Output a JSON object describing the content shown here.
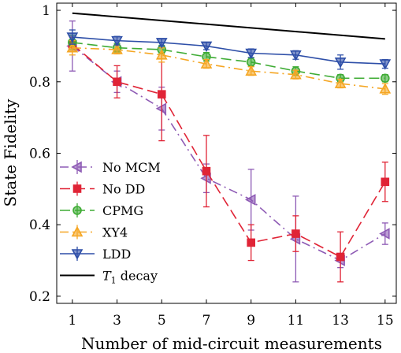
{
  "chart_data": {
    "type": "line",
    "xlabel": "Number of mid-circuit measurements",
    "ylabel": "State Fidelity",
    "xlim": [
      0.3,
      15.5
    ],
    "ylim": [
      0.18,
      1.02
    ],
    "xticks": [
      1,
      3,
      5,
      7,
      9,
      11,
      13,
      15
    ],
    "yticks": [
      0.2,
      0.4,
      0.6,
      0.8,
      1
    ],
    "ytick_labels": [
      "0.2",
      "0.4",
      "0.6",
      "0.8",
      "1"
    ],
    "grid": false,
    "legend_position": "lower-left",
    "x": [
      1,
      3,
      5,
      7,
      9,
      11,
      13,
      15
    ],
    "series": [
      {
        "name": "No MCM",
        "color": "#8e5bb5",
        "marker": "triangle-left",
        "dash": "dashdot",
        "values": [
          0.9,
          0.8,
          0.725,
          0.53,
          0.47,
          0.36,
          0.3,
          0.375
        ],
        "err": [
          0.07,
          0.03,
          0.06,
          0.04,
          0.085,
          0.12,
          0.02,
          0.03
        ]
      },
      {
        "name": "No DD",
        "color": "#e02436",
        "marker": "square",
        "dash": "dash",
        "values": [
          0.905,
          0.8,
          0.765,
          0.55,
          0.35,
          0.375,
          0.31,
          0.52
        ],
        "err": [
          0.02,
          0.045,
          0.13,
          0.1,
          0.05,
          0.05,
          0.07,
          0.055
        ]
      },
      {
        "name": "CPMG",
        "color": "#3fac35",
        "marker": "circle",
        "dash": "dash",
        "values": [
          0.91,
          0.895,
          0.89,
          0.87,
          0.855,
          0.83,
          0.81,
          0.81
        ],
        "err": [
          0.02,
          0.012,
          0.012,
          0.012,
          0.012,
          0.012,
          0.01,
          0.01
        ]
      },
      {
        "name": "XY4",
        "color": "#f5a623",
        "marker": "triangle-up",
        "dash": "dashdot",
        "values": [
          0.895,
          0.89,
          0.875,
          0.85,
          0.83,
          0.82,
          0.795,
          0.78
        ],
        "err": [
          0.02,
          0.012,
          0.02,
          0.012,
          0.012,
          0.012,
          0.012,
          0.015
        ]
      },
      {
        "name": "LDD",
        "color": "#2e4fa8",
        "marker": "triangle-down",
        "dash": "solid",
        "values": [
          0.925,
          0.915,
          0.91,
          0.9,
          0.88,
          0.875,
          0.855,
          0.85
        ],
        "err": [
          0.02,
          0.012,
          0.01,
          0.01,
          0.012,
          0.012,
          0.02,
          0.012
        ]
      }
    ],
    "reference_line": {
      "name": "T_1 decay",
      "name_main": "T",
      "name_sub": "1",
      "name_rest": " decay",
      "color": "#000000",
      "x": [
        1,
        15
      ],
      "values": [
        0.992,
        0.92
      ]
    }
  }
}
